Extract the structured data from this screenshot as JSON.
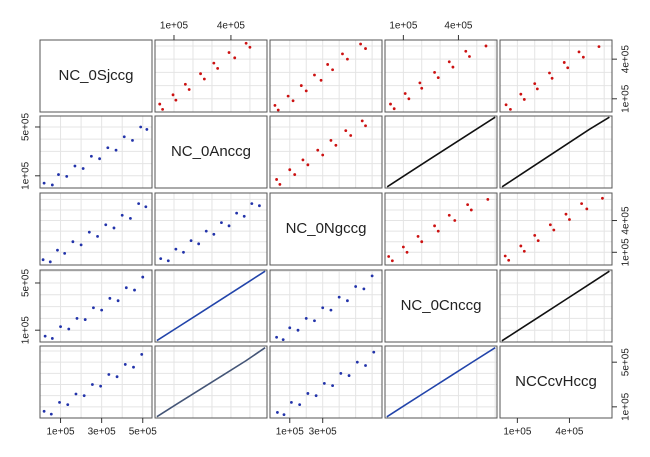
{
  "chart_data": {
    "type": "scatter-matrix",
    "variables": [
      {
        "name": "NC_0Sjccg",
        "lim": [
          0,
          545000
        ],
        "grid": [
          100000,
          200000,
          300000,
          400000,
          500000
        ]
      },
      {
        "name": "NC_0Anccg",
        "lim": [
          0,
          590000
        ],
        "grid": [
          100000,
          200000,
          300000,
          400000,
          500000
        ]
      },
      {
        "name": "NC_0Ngccg",
        "lim": [
          -20000,
          660000
        ],
        "grid": [
          100000,
          200000,
          300000,
          400000,
          500000,
          600000
        ]
      },
      {
        "name": "NC_0Cnccg",
        "lim": [
          0,
          610000
        ],
        "grid": [
          100000,
          200000,
          300000,
          400000,
          500000,
          600000
        ]
      },
      {
        "name": "NCCcvHccg",
        "lim": [
          0,
          645000
        ],
        "grid": [
          100000,
          200000,
          300000,
          400000,
          500000,
          600000
        ]
      }
    ],
    "axes": [
      {
        "side": "top",
        "index": 1,
        "ticks": [
          {
            "value": 100000,
            "label": "1e+05"
          },
          {
            "value": 400000,
            "label": "4e+05"
          }
        ]
      },
      {
        "side": "top",
        "index": 3,
        "ticks": [
          {
            "value": 100000,
            "label": "1e+05"
          },
          {
            "value": 400000,
            "label": "4e+05"
          }
        ]
      },
      {
        "side": "bottom",
        "index": 0,
        "ticks": [
          {
            "value": 100000,
            "label": "1e+05"
          },
          {
            "value": 300000,
            "label": "3e+05"
          },
          {
            "value": 500000,
            "label": "5e+05"
          }
        ]
      },
      {
        "side": "bottom",
        "index": 2,
        "ticks": [
          {
            "value": 100000,
            "label": "1e+05"
          },
          {
            "value": 300000,
            "label": "3e+05"
          }
        ]
      },
      {
        "side": "bottom",
        "index": 4,
        "ticks": [
          {
            "value": 100000,
            "label": "1e+05"
          },
          {
            "value": 400000,
            "label": "4e+05"
          }
        ]
      },
      {
        "side": "left",
        "index": 1,
        "ticks": [
          {
            "value": 100000,
            "label": "1e+05"
          },
          {
            "value": 500000,
            "label": "5e+05"
          }
        ]
      },
      {
        "side": "left",
        "index": 3,
        "ticks": [
          {
            "value": 100000,
            "label": "1e+05"
          },
          {
            "value": 500000,
            "label": "5e+05"
          }
        ]
      },
      {
        "side": "right",
        "index": 0,
        "ticks": [
          {
            "value": 100000,
            "label": "1e+05"
          },
          {
            "value": 400000,
            "label": "4e+05"
          }
        ]
      },
      {
        "side": "right",
        "index": 2,
        "ticks": [
          {
            "value": 100000,
            "label": "1e+05"
          },
          {
            "value": 400000,
            "label": "4e+05"
          }
        ]
      },
      {
        "side": "right",
        "index": 4,
        "ticks": [
          {
            "value": 100000,
            "label": "1e+05"
          },
          {
            "value": 500000,
            "label": "5e+05"
          }
        ]
      }
    ],
    "pairs": [
      {
        "a": 0,
        "b": 1,
        "style": "points",
        "upper_color": "#cc1111",
        "lower_color": "#2233aa",
        "a_values": [
          20000,
          60000,
          90000,
          130000,
          170000,
          210000,
          250000,
          290000,
          330000,
          370000,
          410000,
          450000,
          490000,
          520000
        ],
        "b_values": [
          40000,
          25000,
          110000,
          95000,
          180000,
          160000,
          260000,
          240000,
          330000,
          310000,
          420000,
          390000,
          500000,
          480000
        ]
      },
      {
        "a": 0,
        "b": 2,
        "style": "points",
        "upper_color": "#cc1111",
        "lower_color": "#2233aa",
        "a_values": [
          15000,
          50000,
          85000,
          120000,
          160000,
          200000,
          240000,
          280000,
          320000,
          360000,
          400000,
          440000,
          480000,
          515000
        ],
        "b_values": [
          30000,
          10000,
          120000,
          90000,
          200000,
          170000,
          290000,
          250000,
          360000,
          330000,
          450000,
          420000,
          560000,
          530000
        ]
      },
      {
        "a": 0,
        "b": 3,
        "style": "points",
        "upper_color": "#cc1111",
        "lower_color": "#2233aa",
        "a_values": [
          25000,
          60000,
          100000,
          140000,
          180000,
          220000,
          260000,
          300000,
          340000,
          380000,
          420000,
          460000,
          500000
        ],
        "b_values": [
          50000,
          30000,
          130000,
          110000,
          200000,
          190000,
          290000,
          270000,
          370000,
          350000,
          460000,
          440000,
          550000
        ]
      },
      {
        "a": 0,
        "b": 4,
        "style": "points",
        "upper_color": "#cc1111",
        "lower_color": "#2233aa",
        "a_values": [
          20000,
          55000,
          95000,
          135000,
          175000,
          215000,
          255000,
          295000,
          335000,
          375000,
          415000,
          455000,
          495000
        ],
        "b_values": [
          60000,
          35000,
          140000,
          120000,
          215000,
          200000,
          300000,
          285000,
          390000,
          370000,
          480000,
          455000,
          570000
        ]
      },
      {
        "a": 1,
        "b": 2,
        "style": "points",
        "upper_color": "#cc1111",
        "lower_color": "#2233aa",
        "a_values": [
          30000,
          70000,
          110000,
          150000,
          190000,
          230000,
          270000,
          310000,
          350000,
          390000,
          430000,
          470000,
          510000,
          550000
        ],
        "b_values": [
          40000,
          20000,
          130000,
          100000,
          210000,
          180000,
          300000,
          270000,
          380000,
          350000,
          470000,
          440000,
          560000,
          540000
        ]
      },
      {
        "a": 1,
        "b": 3,
        "style": "line",
        "upper_color": "#111111",
        "lower_color": "#2244aa",
        "a_values": [
          10000,
          120000,
          240000,
          360000,
          480000,
          580000
        ],
        "b_values": [
          12000,
          125000,
          248000,
          372000,
          496000,
          600000
        ]
      },
      {
        "a": 1,
        "b": 4,
        "style": "line",
        "upper_color": "#111111",
        "lower_color": "#445577",
        "a_values": [
          10000,
          120000,
          240000,
          360000,
          480000,
          580000
        ],
        "b_values": [
          12000,
          130000,
          258000,
          386000,
          514000,
          630000
        ]
      },
      {
        "a": 2,
        "b": 3,
        "style": "points",
        "upper_color": "#cc1111",
        "lower_color": "#2233aa",
        "a_values": [
          20000,
          60000,
          100000,
          150000,
          200000,
          250000,
          300000,
          350000,
          400000,
          450000,
          500000,
          550000,
          600000
        ],
        "b_values": [
          40000,
          20000,
          120000,
          100000,
          200000,
          180000,
          290000,
          270000,
          380000,
          350000,
          470000,
          450000,
          560000
        ]
      },
      {
        "a": 2,
        "b": 4,
        "style": "points",
        "upper_color": "#cc1111",
        "lower_color": "#2233aa",
        "a_values": [
          25000,
          65000,
          110000,
          160000,
          210000,
          260000,
          310000,
          360000,
          410000,
          460000,
          510000,
          560000,
          610000
        ],
        "b_values": [
          50000,
          30000,
          140000,
          120000,
          220000,
          200000,
          310000,
          290000,
          400000,
          380000,
          500000,
          470000,
          590000
        ]
      },
      {
        "a": 3,
        "b": 4,
        "style": "line",
        "upper_color": "#111111",
        "lower_color": "#2244aa",
        "a_values": [
          10000,
          120000,
          240000,
          360000,
          480000,
          600000
        ],
        "b_values": [
          11000,
          127000,
          253000,
          379000,
          505000,
          630000
        ]
      }
    ]
  }
}
